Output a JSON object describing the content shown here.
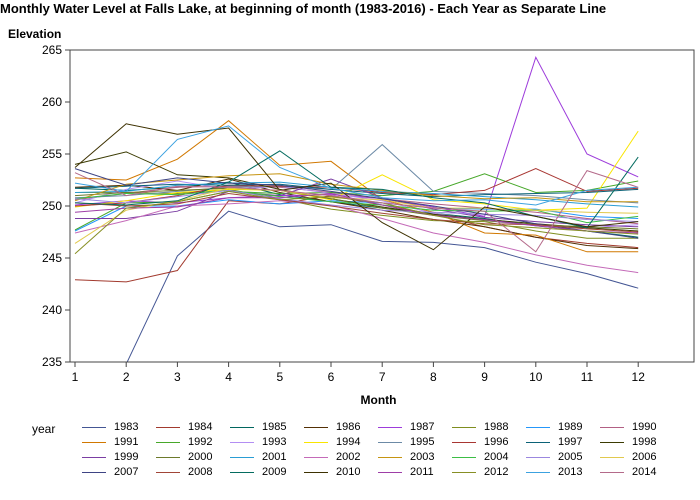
{
  "chart_data": {
    "type": "line",
    "title": "Monthly Water Level at Falls Lake, at beginning of month (1983-2016) - Each Year as Separate Line",
    "ylabel": "Elevation",
    "xlabel": "Month",
    "legend_title": "year",
    "legend_position": "bottom",
    "grid": false,
    "x": [
      1,
      2,
      3,
      4,
      5,
      6,
      7,
      8,
      9,
      10,
      11,
      12
    ],
    "x_ticks": [
      "1",
      "2",
      "3",
      "4",
      "5",
      "6",
      "7",
      "8",
      "9",
      "10",
      "11",
      "12"
    ],
    "y_ticks": [
      "235",
      "240",
      "245",
      "250",
      "255",
      "260",
      "265"
    ],
    "xlim": [
      1,
      13
    ],
    "ylim": [
      235,
      265
    ],
    "series": [
      {
        "name": "1983",
        "color": "#445694",
        "values": [
          null,
          234.8,
          245.2,
          249.5,
          248.0,
          248.2,
          246.6,
          246.5,
          246.0,
          244.6,
          243.5,
          242.1
        ]
      },
      {
        "name": "1984",
        "color": "#a23a2e",
        "values": [
          242.9,
          242.7,
          243.8,
          250.5,
          250.2,
          251.0,
          250.1,
          249.2,
          248.0,
          247.0,
          246.4,
          246.0
        ]
      },
      {
        "name": "1985",
        "color": "#01665e",
        "values": [
          251.7,
          251.5,
          251.8,
          252.3,
          251.1,
          250.4,
          249.8,
          249.3,
          248.8,
          248.1,
          247.6,
          247.0
        ]
      },
      {
        "name": "1986",
        "color": "#543005",
        "values": [
          251.8,
          252.0,
          251.5,
          252.6,
          251.3,
          250.4,
          249.6,
          248.7,
          248.0,
          247.0,
          246.2,
          245.9
        ]
      },
      {
        "name": "1987",
        "color": "#9d3cdb",
        "values": [
          250.1,
          250.5,
          250.3,
          250.8,
          251.0,
          251.1,
          250.7,
          249.9,
          249.0,
          264.3,
          255.0,
          252.8
        ]
      },
      {
        "name": "1988",
        "color": "#7f8e1f",
        "values": [
          251.3,
          251.3,
          251.2,
          251.6,
          250.7,
          249.7,
          249.1,
          248.6,
          248.5,
          247.6,
          246.9,
          246.9
        ]
      },
      {
        "name": "1989",
        "color": "#2597fa",
        "values": [
          247.6,
          250.0,
          250.0,
          250.6,
          250.2,
          250.5,
          250.3,
          249.8,
          249.7,
          249.7,
          249.0,
          248.8
        ]
      },
      {
        "name": "1990",
        "color": "#b26084",
        "values": [
          250.6,
          251.2,
          251.8,
          251.9,
          251.8,
          251.3,
          250.7,
          250.2,
          249.8,
          249.4,
          248.8,
          248.3
        ]
      },
      {
        "name": "1991",
        "color": "#d17800",
        "values": [
          252.7,
          252.5,
          254.5,
          258.2,
          253.9,
          254.3,
          250.6,
          249.4,
          247.4,
          247.2,
          245.6,
          245.6
        ]
      },
      {
        "name": "1992",
        "color": "#47a82a",
        "values": [
          247.7,
          250.3,
          250.4,
          251.4,
          251.2,
          251.3,
          251.0,
          251.4,
          253.1,
          251.3,
          251.5,
          252.4
        ]
      },
      {
        "name": "1993",
        "color": "#b38ef3",
        "values": [
          250.3,
          251.6,
          252.4,
          251.6,
          251.9,
          251.2,
          250.5,
          249.3,
          248.6,
          248.1,
          247.9,
          248.2
        ]
      },
      {
        "name": "1994",
        "color": "#f9e500",
        "values": [
          249.9,
          250.5,
          251.3,
          251.6,
          251.5,
          250.6,
          253.0,
          250.6,
          250.2,
          249.6,
          249.8,
          257.2
        ]
      },
      {
        "name": "1995",
        "color": "#6c8aa6",
        "values": [
          250.8,
          251.0,
          251.4,
          251.8,
          251.9,
          251.6,
          255.9,
          251.4,
          251.2,
          251.0,
          250.6,
          250.3
        ]
      },
      {
        "name": "1996",
        "color": "#a83632",
        "values": [
          250.0,
          250.3,
          251.0,
          252.0,
          251.9,
          251.8,
          251.3,
          251.1,
          251.5,
          253.6,
          251.4,
          251.7
        ]
      },
      {
        "name": "1997",
        "color": "#0b6277",
        "values": [
          251.7,
          251.9,
          252.1,
          252.0,
          252.1,
          251.6,
          251.2,
          250.9,
          251.1,
          251.2,
          251.3,
          251.6
        ]
      },
      {
        "name": "1998",
        "color": "#3b3b02",
        "values": [
          254.0,
          255.2,
          253.0,
          252.7,
          251.6,
          250.7,
          249.9,
          249.2,
          248.7,
          248.3,
          247.9,
          247.6
        ]
      },
      {
        "name": "1999",
        "color": "#7b3ea3",
        "values": [
          248.8,
          248.8,
          249.5,
          251.4,
          251.0,
          252.6,
          250.8,
          249.7,
          248.9,
          248.5,
          248.2,
          248.0
        ]
      },
      {
        "name": "2000",
        "color": "#6d7a2b",
        "values": [
          251.0,
          251.3,
          251.5,
          251.7,
          251.5,
          250.7,
          249.8,
          249.1,
          248.6,
          248.2,
          248.0,
          247.8
        ]
      },
      {
        "name": "2001",
        "color": "#2a9dd4",
        "values": [
          251.3,
          251.4,
          252.0,
          252.2,
          252.3,
          251.8,
          251.4,
          251.2,
          250.9,
          250.6,
          250.2,
          249.9
        ]
      },
      {
        "name": "2002",
        "color": "#c46ab8",
        "values": [
          247.4,
          248.6,
          250.0,
          250.2,
          250.5,
          250.1,
          248.8,
          247.4,
          246.5,
          245.3,
          244.3,
          243.6
        ]
      },
      {
        "name": "2003",
        "color": "#c69512",
        "values": [
          250.5,
          252.1,
          252.5,
          252.9,
          253.1,
          252.1,
          251.5,
          251.0,
          250.7,
          250.8,
          250.4,
          250.4
        ]
      },
      {
        "name": "2004",
        "color": "#3cbe45",
        "values": [
          250.7,
          251.2,
          251.1,
          251.5,
          250.9,
          250.4,
          250.1,
          249.6,
          249.5,
          249.6,
          248.4,
          249.0
        ]
      },
      {
        "name": "2005",
        "color": "#9b87df",
        "values": [
          250.7,
          250.3,
          250.9,
          251.5,
          250.7,
          250.1,
          249.6,
          249.4,
          249.2,
          249.1,
          248.7,
          248.5
        ]
      },
      {
        "name": "2006",
        "color": "#e1c94e",
        "values": [
          246.4,
          249.6,
          250.5,
          251.7,
          251.5,
          250.8,
          250.6,
          249.8,
          249.8,
          249.6,
          249.4,
          249.3
        ]
      },
      {
        "name": "2007",
        "color": "#3e4484",
        "values": [
          253.6,
          252.0,
          252.7,
          252.2,
          252.0,
          251.4,
          250.7,
          250.0,
          249.2,
          248.3,
          247.6,
          246.9
        ]
      },
      {
        "name": "2008",
        "color": "#a14537",
        "values": [
          250.3,
          250.0,
          250.2,
          251.2,
          250.6,
          250.0,
          249.3,
          248.7,
          248.3,
          248.2,
          247.8,
          247.5
        ]
      },
      {
        "name": "2009",
        "color": "#056c60",
        "values": [
          250.3,
          250.1,
          250.5,
          252.3,
          255.3,
          251.8,
          251.6,
          250.8,
          250.3,
          249.0,
          247.9,
          254.7
        ]
      },
      {
        "name": "2010",
        "color": "#3d3101",
        "values": [
          253.7,
          257.9,
          256.9,
          257.5,
          251.5,
          252.2,
          248.4,
          245.8,
          249.9,
          249.0,
          248.0,
          248.5
        ]
      },
      {
        "name": "2011",
        "color": "#9e3ea7",
        "values": [
          249.4,
          249.8,
          249.9,
          250.8,
          250.8,
          251.2,
          250.1,
          249.1,
          248.7,
          248.1,
          247.6,
          247.4
        ]
      },
      {
        "name": "2012",
        "color": "#878f24",
        "values": [
          245.4,
          249.8,
          250.4,
          251.4,
          250.6,
          250.9,
          250.3,
          249.1,
          248.2,
          247.9,
          247.6,
          247.3
        ]
      },
      {
        "name": "2013",
        "color": "#3ca2e0",
        "values": [
          252.2,
          251.4,
          256.4,
          257.7,
          253.7,
          251.7,
          250.8,
          250.5,
          250.6,
          250.1,
          251.5,
          251.8
        ]
      },
      {
        "name": "2014",
        "color": "#b46a8a",
        "values": [
          253.2,
          251.0,
          251.9,
          251.8,
          251.5,
          251.0,
          250.3,
          249.8,
          249.5,
          245.6,
          253.4,
          251.8
        ]
      }
    ]
  }
}
